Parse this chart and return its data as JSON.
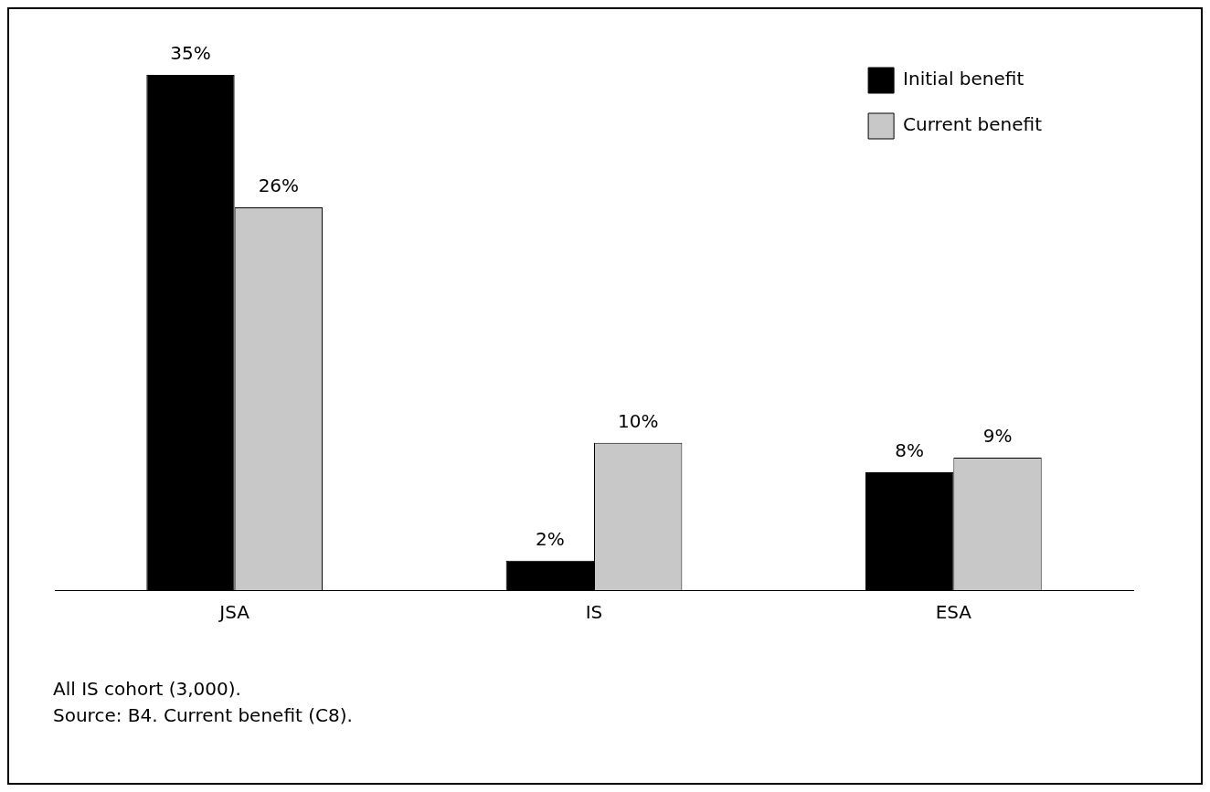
{
  "chart_data": {
    "type": "bar",
    "categories": [
      "JSA",
      "IS",
      "ESA"
    ],
    "series": [
      {
        "name": "Initial benefit",
        "color": "#000000",
        "values": [
          35,
          2,
          8
        ],
        "value_labels": [
          "35%",
          "2%",
          "8%"
        ]
      },
      {
        "name": "Current benefit",
        "color": "#c8c8c8",
        "values": [
          26,
          10,
          9
        ],
        "value_labels": [
          "26%",
          "10%",
          "9%"
        ]
      }
    ],
    "legend": "top right",
    "grid": false,
    "annotations": [
      "All IS cohort (3,000).",
      "Source: B4. Current benefit (C8)."
    ]
  }
}
